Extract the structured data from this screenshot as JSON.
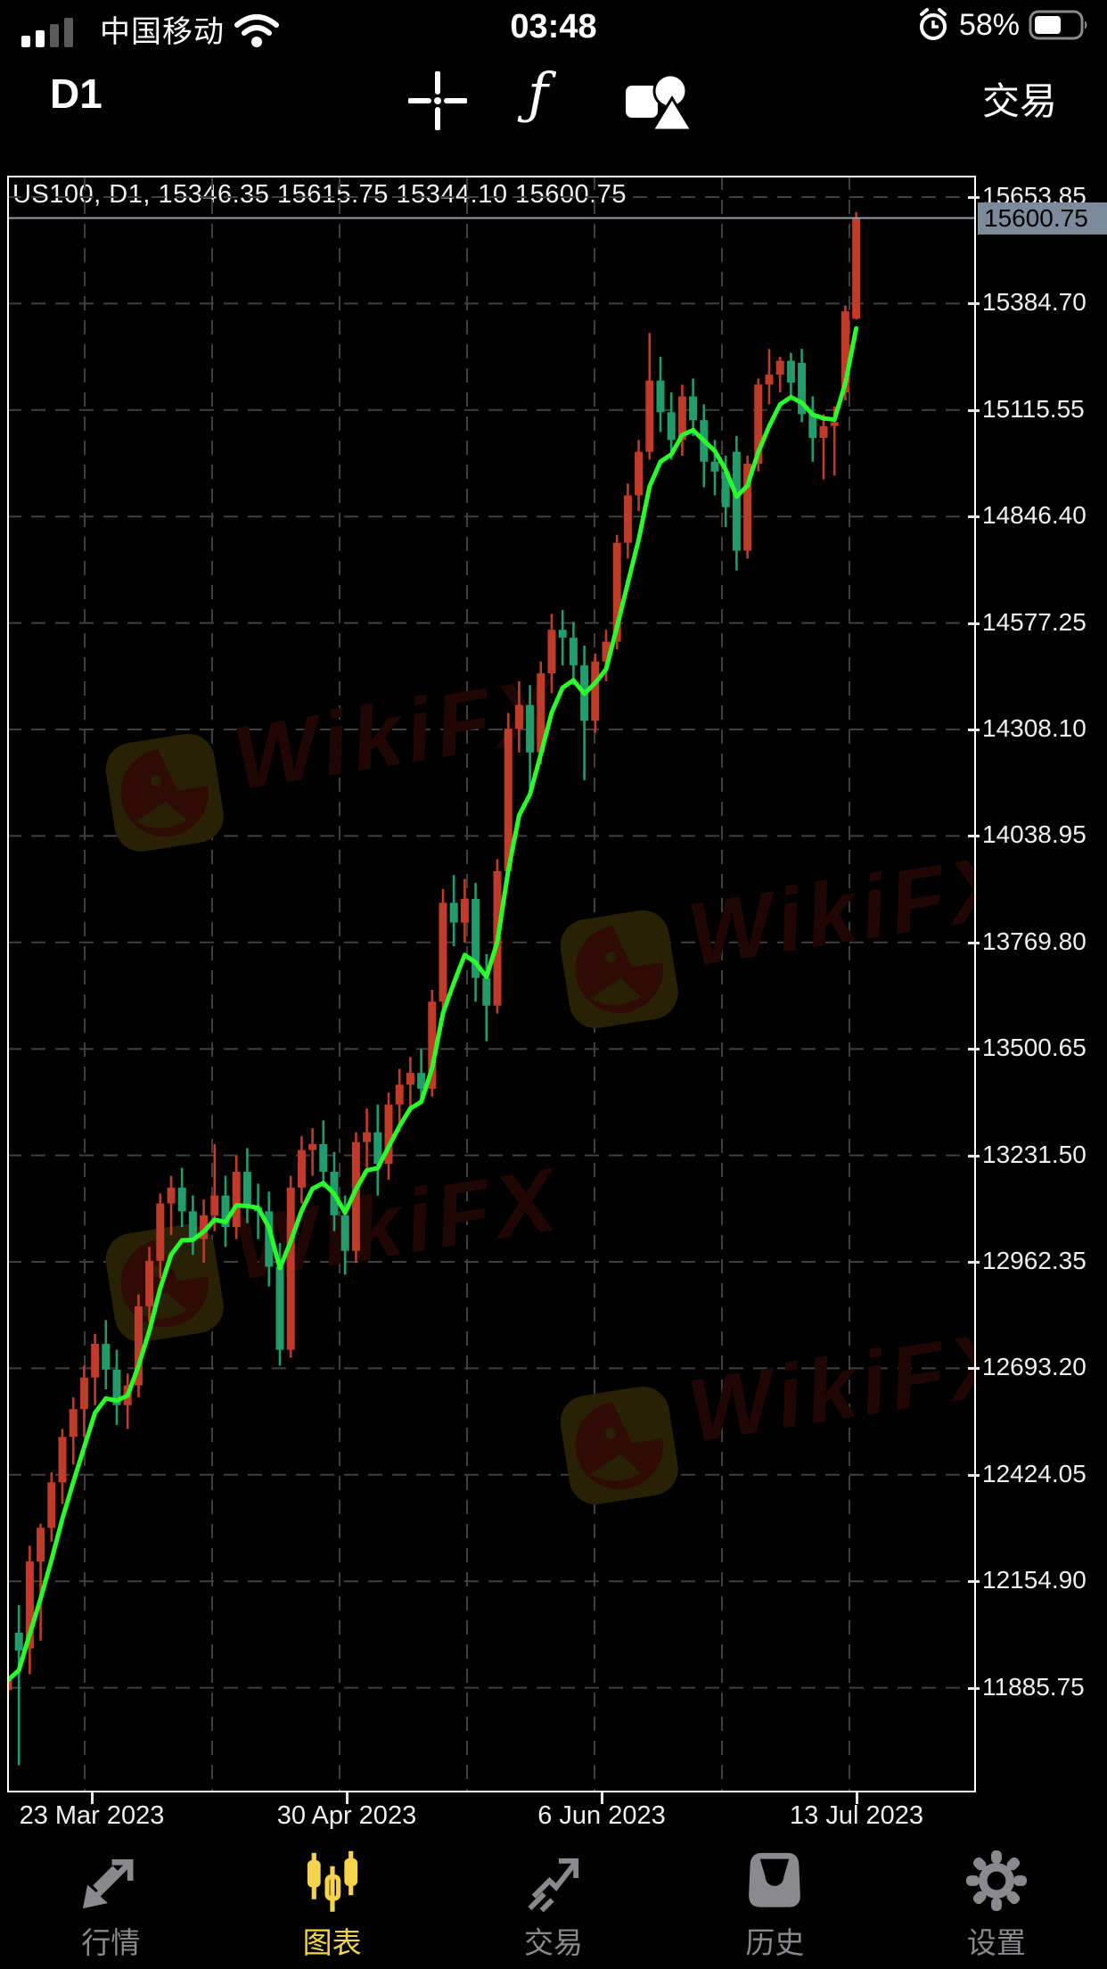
{
  "status_bar": {
    "carrier": "中国移动",
    "time": "03:48",
    "battery_percent": "58%",
    "battery_level": 0.58
  },
  "toolbar": {
    "timeframe": "D1",
    "function_glyph": "ƒ",
    "trade_label": "交易"
  },
  "watermark": {
    "text": "WikiFX"
  },
  "chart_data": {
    "type": "candlestick",
    "symbol": "US100",
    "timeframe": "D1",
    "header": "US100, D1, 15346.35 15615.75 15344.10 15600.75",
    "open": "15346.35",
    "high": "15615.75",
    "low": "15344.10",
    "close": "15600.75",
    "current_price": "15600.75",
    "y_ticks": [
      "15653.85",
      "15384.70",
      "15115.55",
      "14846.40",
      "14577.25",
      "14308.10",
      "14038.95",
      "13769.80",
      "13500.65",
      "13231.50",
      "12962.35",
      "12693.20",
      "12424.05",
      "12154.90",
      "11885.75"
    ],
    "x_ticks": [
      "23 Mar 2023",
      "30 Apr 2023",
      "6 Jun 2023",
      "13 Jul 2023"
    ],
    "ma": {
      "type": "EMA",
      "period": 5,
      "color": "#2bff2b"
    },
    "colors": {
      "up": "#c13b2a",
      "down": "#239c6b",
      "grid": "#404040",
      "border": "#ffffff",
      "price_line": "#8fa0b0",
      "badge_bg": "#7b8b9c"
    },
    "candles": [
      [
        11880,
        11915,
        11855,
        11905
      ],
      [
        12025,
        12095,
        11690,
        11980
      ],
      [
        11985,
        12245,
        11920,
        12205
      ],
      [
        12205,
        12300,
        12005,
        12290
      ],
      [
        12290,
        12430,
        12255,
        12405
      ],
      [
        12405,
        12540,
        12350,
        12520
      ],
      [
        12520,
        12620,
        12450,
        12590
      ],
      [
        12590,
        12700,
        12520,
        12670
      ],
      [
        12670,
        12780,
        12600,
        12755
      ],
      [
        12755,
        12815,
        12640,
        12690
      ],
      [
        12690,
        12740,
        12550,
        12600
      ],
      [
        12600,
        12680,
        12540,
        12650
      ],
      [
        12650,
        12880,
        12620,
        12850
      ],
      [
        12850,
        13000,
        12810,
        12965
      ],
      [
        12965,
        13135,
        12920,
        13110
      ],
      [
        13110,
        13180,
        13030,
        13150
      ],
      [
        13150,
        13200,
        13050,
        13090
      ],
      [
        13090,
        13130,
        12980,
        13020
      ],
      [
        13020,
        13120,
        12960,
        13080
      ],
      [
        13080,
        13260,
        13040,
        13130
      ],
      [
        13130,
        13180,
        13000,
        13050
      ],
      [
        13050,
        13230,
        13020,
        13190
      ],
      [
        13190,
        13250,
        13060,
        13100
      ],
      [
        13100,
        13160,
        13020,
        13090
      ],
      [
        13090,
        13140,
        12900,
        12950
      ],
      [
        12950,
        13010,
        12700,
        12740
      ],
      [
        12740,
        13180,
        12720,
        13150
      ],
      [
        13150,
        13280,
        13110,
        13245
      ],
      [
        13245,
        13300,
        13180,
        13260
      ],
      [
        13260,
        13320,
        13150,
        13190
      ],
      [
        13190,
        13240,
        13040,
        13080
      ],
      [
        13080,
        13130,
        12930,
        12990
      ],
      [
        12990,
        13290,
        12960,
        13265
      ],
      [
        13265,
        13350,
        13200,
        13290
      ],
      [
        13290,
        13360,
        13130,
        13210
      ],
      [
        13210,
        13390,
        13170,
        13360
      ],
      [
        13360,
        13450,
        13290,
        13410
      ],
      [
        13410,
        13480,
        13340,
        13440
      ],
      [
        13440,
        13500,
        13360,
        13400
      ],
      [
        13400,
        13650,
        13380,
        13620
      ],
      [
        13620,
        13905,
        13590,
        13870
      ],
      [
        13870,
        13940,
        13760,
        13820
      ],
      [
        13820,
        13930,
        13770,
        13880
      ],
      [
        13880,
        13920,
        13620,
        13680
      ],
      [
        13680,
        13740,
        13520,
        13610
      ],
      [
        13610,
        13980,
        13590,
        13950
      ],
      [
        13950,
        14350,
        13930,
        14310
      ],
      [
        14310,
        14430,
        14250,
        14370
      ],
      [
        14370,
        14420,
        14150,
        14250
      ],
      [
        14250,
        14480,
        14220,
        14450
      ],
      [
        14450,
        14600,
        14400,
        14560
      ],
      [
        14560,
        14610,
        14470,
        14540
      ],
      [
        14540,
        14580,
        14420,
        14470
      ],
      [
        14470,
        14520,
        14180,
        14330
      ],
      [
        14330,
        14500,
        14300,
        14480
      ],
      [
        14480,
        14560,
        14430,
        14530
      ],
      [
        14530,
        14800,
        14510,
        14780
      ],
      [
        14780,
        14930,
        14740,
        14900
      ],
      [
        14900,
        15040,
        14860,
        15010
      ],
      [
        15010,
        15310,
        14990,
        15190
      ],
      [
        15190,
        15250,
        15060,
        15110
      ],
      [
        15110,
        15160,
        14990,
        15040
      ],
      [
        15040,
        15180,
        15000,
        15150
      ],
      [
        15150,
        15195,
        15050,
        15090
      ],
      [
        15090,
        15130,
        14920,
        14985
      ],
      [
        14985,
        15040,
        14900,
        14960
      ],
      [
        14960,
        15000,
        14820,
        14870
      ],
      [
        15010,
        15050,
        14710,
        14760
      ],
      [
        14760,
        15000,
        14740,
        14980
      ],
      [
        14980,
        15195,
        14960,
        15180
      ],
      [
        15180,
        15270,
        15130,
        15205
      ],
      [
        15205,
        15250,
        15160,
        15240
      ],
      [
        15240,
        15260,
        15150,
        15185
      ],
      [
        15235,
        15270,
        15085,
        15105
      ],
      [
        15105,
        15150,
        14985,
        15045
      ],
      [
        15045,
        15105,
        14940,
        15075
      ],
      [
        15075,
        15125,
        14950,
        15085
      ],
      [
        15160,
        15380,
        15140,
        15365
      ],
      [
        15346.35,
        15615.75,
        15344.1,
        15600.75
      ]
    ]
  },
  "tab_bar": {
    "items": [
      {
        "id": "quotes",
        "label": "行情",
        "active": false
      },
      {
        "id": "charts",
        "label": "图表",
        "active": true
      },
      {
        "id": "trade",
        "label": "交易",
        "active": false
      },
      {
        "id": "history",
        "label": "历史",
        "active": false
      },
      {
        "id": "settings",
        "label": "设置",
        "active": false
      }
    ]
  }
}
